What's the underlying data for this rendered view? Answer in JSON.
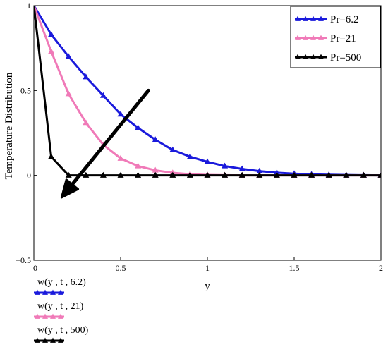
{
  "chart_data": {
    "type": "line",
    "title": "",
    "xlabel": "y",
    "ylabel": "Temperature Distribution",
    "xlim": [
      0,
      2
    ],
    "ylim": [
      -0.5,
      1
    ],
    "xticks": [
      0,
      0.5,
      1,
      1.5,
      2
    ],
    "xtick_labels": [
      "0",
      "0.5",
      "1",
      "1.5",
      "2"
    ],
    "yticks": [
      -0.5,
      0,
      0.5,
      1
    ],
    "ytick_labels": [
      "−0.5",
      "0",
      "0.5",
      "1"
    ],
    "grid": false,
    "legend_position": "top-right",
    "series": [
      {
        "name": "Pr=6.2",
        "expression": "w(y , t , 6.2)",
        "color": "#1a1adc",
        "marker": "triangle",
        "x": [
          0,
          0.1,
          0.2,
          0.3,
          0.4,
          0.5,
          0.6,
          0.7,
          0.8,
          0.9,
          1.0,
          1.1,
          1.2,
          1.3,
          1.4,
          1.5,
          1.6,
          1.7,
          1.8,
          1.9,
          2.0
        ],
        "y": [
          1,
          0.83,
          0.7,
          0.58,
          0.47,
          0.36,
          0.28,
          0.21,
          0.15,
          0.11,
          0.08,
          0.055,
          0.038,
          0.025,
          0.016,
          0.01,
          0.006,
          0.004,
          0.002,
          0.001,
          0
        ]
      },
      {
        "name": "Pr=21",
        "expression": "w(y , t , 21)",
        "color": "#f07ab8",
        "marker": "triangle",
        "x": [
          0,
          0.1,
          0.2,
          0.3,
          0.4,
          0.5,
          0.6,
          0.7,
          0.8,
          0.9,
          1.0,
          1.1,
          1.2,
          1.3,
          1.4,
          1.5,
          1.6,
          1.7,
          1.8,
          1.9,
          2.0
        ],
        "y": [
          1,
          0.73,
          0.48,
          0.31,
          0.18,
          0.1,
          0.055,
          0.03,
          0.015,
          0.007,
          0.003,
          0.001,
          0,
          0,
          0,
          0,
          0,
          0,
          0,
          0,
          0
        ]
      },
      {
        "name": "Pr=500",
        "expression": "w(y , t , 500)",
        "color": "#000000",
        "marker": "triangle",
        "x": [
          0,
          0.1,
          0.2,
          0.3,
          0.4,
          0.5,
          0.6,
          0.7,
          0.8,
          0.9,
          1.0,
          1.1,
          1.2,
          1.3,
          1.4,
          1.5,
          1.6,
          1.7,
          1.8,
          1.9,
          2.0
        ],
        "y": [
          1,
          0.11,
          0,
          0,
          0,
          0,
          0,
          0,
          0,
          0,
          0,
          0,
          0,
          0,
          0,
          0,
          0,
          0,
          0,
          0,
          0
        ]
      }
    ],
    "annotations": [
      {
        "type": "arrow",
        "from": [
          0.66,
          0.5
        ],
        "to": [
          0.16,
          -0.13
        ]
      }
    ]
  }
}
